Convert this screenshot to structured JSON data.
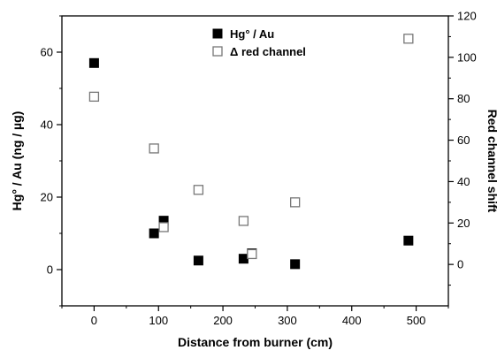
{
  "chart_data": {
    "type": "scatter",
    "title": "",
    "xlabel": "Distance from burner (cm)",
    "ylabel_left": "Hg° / Au (ng / µg)",
    "ylabel_right": "Red channel shift",
    "xlim": [
      -50,
      550
    ],
    "ylim_left": [
      -10,
      70
    ],
    "ylim_right": [
      -20,
      120
    ],
    "x_ticks": [
      0,
      100,
      200,
      300,
      400,
      500
    ],
    "y_left_ticks": [
      0,
      20,
      40,
      60
    ],
    "y_right_ticks": [
      0,
      20,
      40,
      60,
      80,
      100,
      120
    ],
    "grid": false,
    "legend_position": "top-center",
    "series": [
      {
        "name": "Hg° / Au",
        "axis": "left",
        "marker": "filled-square",
        "color": "#000000",
        "x": [
          0,
          93,
          108,
          162,
          232,
          245,
          312,
          488
        ],
        "y": [
          57,
          10,
          13.5,
          2.5,
          3,
          4.5,
          1.5,
          8
        ]
      },
      {
        "name": "Δ red channel",
        "axis": "right",
        "marker": "open-square",
        "color": "#777777",
        "x": [
          0,
          93,
          108,
          162,
          232,
          245,
          312,
          488
        ],
        "y": [
          81,
          56,
          18,
          36,
          21,
          5,
          30,
          109
        ]
      }
    ]
  }
}
